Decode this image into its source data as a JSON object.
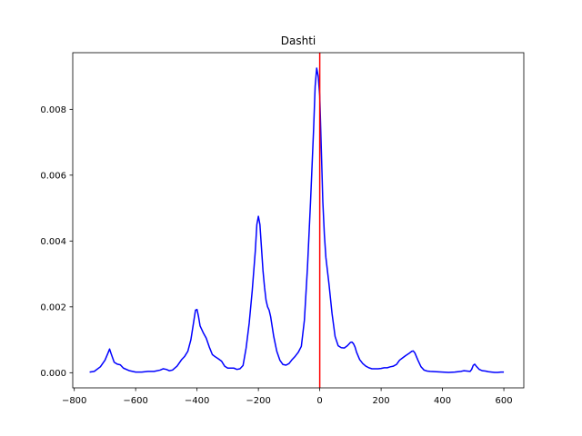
{
  "chart_data": {
    "type": "line",
    "title": "Dashti",
    "xlabel": "",
    "ylabel": "",
    "xlim": [
      -805,
      665
    ],
    "ylim": [
      -0.00046,
      0.00972
    ],
    "xticks": [
      -800,
      -600,
      -400,
      -200,
      0,
      200,
      400,
      600
    ],
    "xtick_labels": [
      "−800",
      "−600",
      "−400",
      "−200",
      "0",
      "200",
      "400",
      "600"
    ],
    "yticks": [
      0.0,
      0.002,
      0.004,
      0.006,
      0.008
    ],
    "ytick_labels": [
      "0.000",
      "0.002",
      "0.004",
      "0.006",
      "0.008"
    ],
    "grid": false,
    "vline": {
      "x": 0,
      "color": "#ff0000"
    },
    "series": [
      {
        "color": "#0000ff",
        "x": [
          -750,
          -735,
          -715,
          -700,
          -690,
          -685,
          -680,
          -670,
          -660,
          -650,
          -640,
          -620,
          -600,
          -580,
          -560,
          -540,
          -520,
          -510,
          -500,
          -490,
          -480,
          -465,
          -450,
          -440,
          -430,
          -420,
          -410,
          -405,
          -400,
          -395,
          -390,
          -380,
          -370,
          -360,
          -350,
          -340,
          -330,
          -320,
          -310,
          -300,
          -290,
          -280,
          -270,
          -260,
          -250,
          -240,
          -230,
          -220,
          -210,
          -205,
          -200,
          -195,
          -190,
          -185,
          -180,
          -175,
          -170,
          -165,
          -160,
          -150,
          -140,
          -130,
          -120,
          -110,
          -100,
          -90,
          -80,
          -70,
          -60,
          -50,
          -40,
          -30,
          -20,
          -15,
          -10,
          -5,
          0,
          5,
          10,
          15,
          20,
          25,
          30,
          40,
          50,
          60,
          70,
          80,
          90,
          100,
          105,
          110,
          115,
          120,
          130,
          140,
          150,
          160,
          170,
          180,
          190,
          200,
          210,
          220,
          230,
          240,
          250,
          260,
          270,
          280,
          290,
          300,
          305,
          310,
          320,
          330,
          340,
          350,
          360,
          380,
          400,
          420,
          440,
          460,
          470,
          480,
          490,
          495,
          500,
          505,
          510,
          520,
          530,
          540,
          550,
          560,
          570,
          580,
          590,
          600
        ],
        "y": [
          2e-05,
          4e-05,
          0.00018,
          0.00038,
          0.0006,
          0.00072,
          0.00058,
          0.00032,
          0.00026,
          0.00024,
          0.00014,
          6e-05,
          2e-05,
          2e-05,
          4e-05,
          4e-05,
          8e-05,
          0.00012,
          0.0001,
          6e-05,
          8e-05,
          0.0002,
          0.0004,
          0.0005,
          0.00065,
          0.001,
          0.0016,
          0.0019,
          0.00192,
          0.0017,
          0.00142,
          0.00122,
          0.00105,
          0.00078,
          0.00055,
          0.00048,
          0.00042,
          0.00035,
          0.0002,
          0.00014,
          0.00014,
          0.00014,
          0.0001,
          0.00012,
          0.00022,
          0.00075,
          0.0015,
          0.0025,
          0.0037,
          0.0045,
          0.00475,
          0.0045,
          0.0038,
          0.0031,
          0.0026,
          0.0022,
          0.002,
          0.0019,
          0.0017,
          0.0011,
          0.00065,
          0.00038,
          0.00025,
          0.00023,
          0.00028,
          0.0004,
          0.0005,
          0.00062,
          0.0008,
          0.0016,
          0.0032,
          0.0052,
          0.0074,
          0.0087,
          0.00925,
          0.009,
          0.0084,
          0.0068,
          0.0052,
          0.0042,
          0.0035,
          0.0031,
          0.0027,
          0.0018,
          0.0011,
          0.00082,
          0.00076,
          0.00075,
          0.00082,
          0.00092,
          0.00093,
          0.00088,
          0.00078,
          0.00062,
          0.0004,
          0.00028,
          0.0002,
          0.00015,
          0.00012,
          0.00012,
          0.00012,
          0.00013,
          0.00015,
          0.00015,
          0.00018,
          0.0002,
          0.00025,
          0.00038,
          0.00045,
          0.00052,
          0.00058,
          0.00065,
          0.00066,
          0.0006,
          0.00038,
          0.00018,
          8e-05,
          5e-05,
          4e-05,
          3e-05,
          2e-05,
          1e-05,
          2e-05,
          4e-05,
          6e-05,
          5e-05,
          4e-05,
          0.0001,
          0.00022,
          0.00026,
          0.0002,
          0.0001,
          6e-05,
          5e-05,
          3e-05,
          2e-05,
          1e-05,
          1e-05,
          2e-05,
          2e-05
        ]
      }
    ]
  }
}
